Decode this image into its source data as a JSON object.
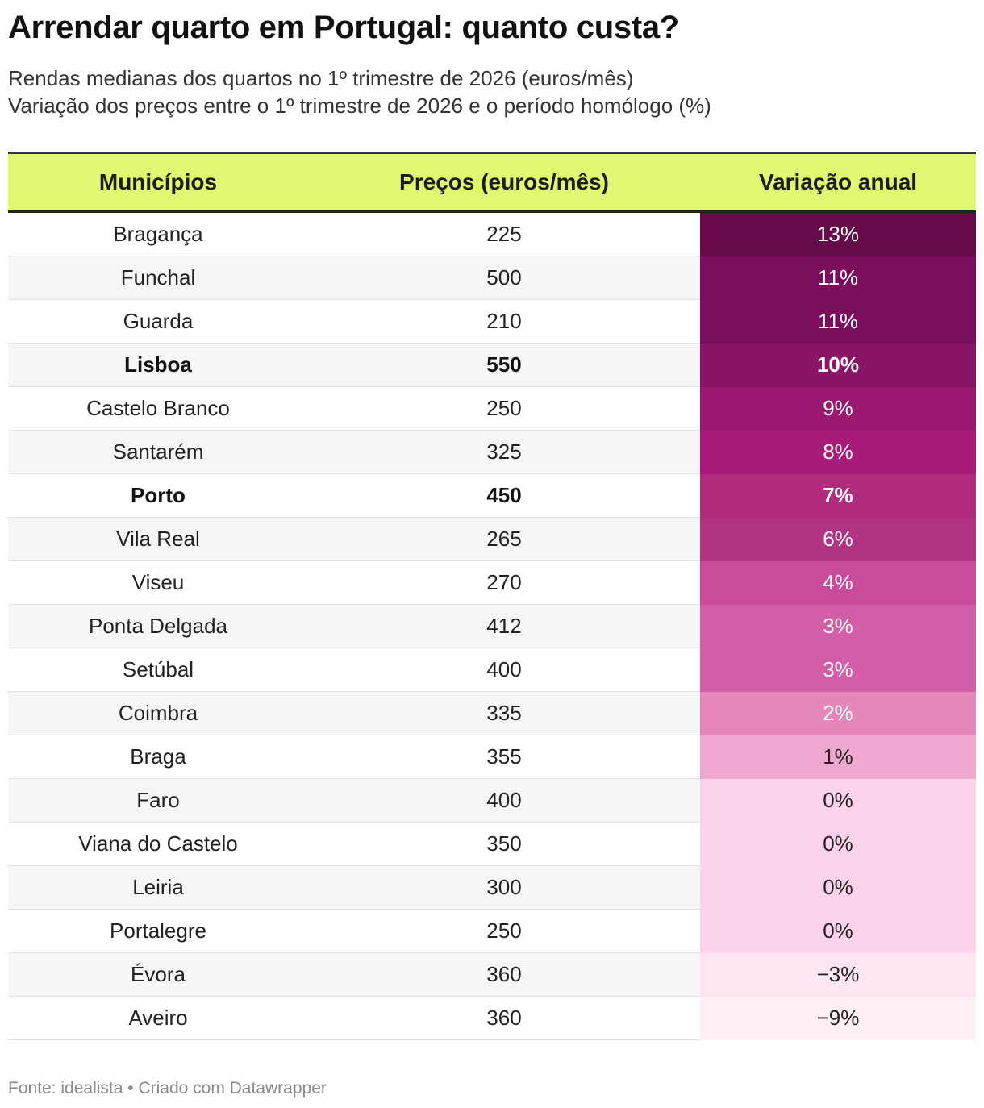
{
  "title": "Arrendar quarto em Portugal: quanto custa?",
  "subtitle_line1": "Rendas medianas dos quartos no 1º trimestre de 2026 (euros/mês)",
  "subtitle_line2": "Variação dos preços entre o 1º trimestre de 2026 e o período homólogo (%)",
  "footer": "Fonte: idealista • Criado com Datawrapper",
  "colors": {
    "header_bg": "#e1f671",
    "scale": [
      "#fff0f7",
      "#fde4f1",
      "#fdd3ec",
      "#efa6cf",
      "#e487bb",
      "#d660a5",
      "#cf519e",
      "#c64497",
      "#b02a7e",
      "#a81b78",
      "#9a1870",
      "#8a1466",
      "#7a0e5c",
      "#660a4a"
    ]
  },
  "chart_data": {
    "type": "table",
    "title": "Arrendar quarto em Portugal: quanto custa?",
    "columns": [
      "Municípios",
      "Preços (euros/mês)",
      "Variação anual"
    ],
    "rows": [
      {
        "municipio": "Bragança",
        "preco": "225",
        "variacao": "13%",
        "variacao_value": 13,
        "bold": false,
        "color": "#660a4a",
        "light_text": true
      },
      {
        "municipio": "Funchal",
        "preco": "500",
        "variacao": "11%",
        "variacao_value": 11,
        "bold": false,
        "color": "#7a0e5c",
        "light_text": true
      },
      {
        "municipio": "Guarda",
        "preco": "210",
        "variacao": "11%",
        "variacao_value": 11,
        "bold": false,
        "color": "#7a0e5c",
        "light_text": true
      },
      {
        "municipio": "Lisboa",
        "preco": "550",
        "variacao": "10%",
        "variacao_value": 10,
        "bold": true,
        "color": "#8a1466",
        "light_text": true
      },
      {
        "municipio": "Castelo Branco",
        "preco": "250",
        "variacao": "9%",
        "variacao_value": 9,
        "bold": false,
        "color": "#9a1870",
        "light_text": true
      },
      {
        "municipio": "Santarém",
        "preco": "325",
        "variacao": "8%",
        "variacao_value": 8,
        "bold": false,
        "color": "#a81b78",
        "light_text": true
      },
      {
        "municipio": "Porto",
        "preco": "450",
        "variacao": "7%",
        "variacao_value": 7,
        "bold": true,
        "color": "#b02a7e",
        "light_text": true
      },
      {
        "municipio": "Vila Real",
        "preco": "265",
        "variacao": "6%",
        "variacao_value": 6,
        "bold": false,
        "color": "#b23382",
        "light_text": true
      },
      {
        "municipio": "Viseu",
        "preco": "270",
        "variacao": "4%",
        "variacao_value": 4,
        "bold": false,
        "color": "#c9499b",
        "light_text": true
      },
      {
        "municipio": "Ponta Delgada",
        "preco": "412",
        "variacao": "3%",
        "variacao_value": 3,
        "bold": false,
        "color": "#d15ea6",
        "light_text": true
      },
      {
        "municipio": "Setúbal",
        "preco": "400",
        "variacao": "3%",
        "variacao_value": 3,
        "bold": false,
        "color": "#d15ea6",
        "light_text": true
      },
      {
        "municipio": "Coimbra",
        "preco": "335",
        "variacao": "2%",
        "variacao_value": 2,
        "bold": false,
        "color": "#e487bb",
        "light_text": true
      },
      {
        "municipio": "Braga",
        "preco": "355",
        "variacao": "1%",
        "variacao_value": 1,
        "bold": false,
        "color": "#efa8d0",
        "light_text": false
      },
      {
        "municipio": "Faro",
        "preco": "400",
        "variacao": "0%",
        "variacao_value": 0,
        "bold": false,
        "color": "#fdd3ec",
        "light_text": false
      },
      {
        "municipio": "Viana do Castelo",
        "preco": "350",
        "variacao": "0%",
        "variacao_value": 0,
        "bold": false,
        "color": "#fdd3ec",
        "light_text": false
      },
      {
        "municipio": "Leiria",
        "preco": "300",
        "variacao": "0%",
        "variacao_value": 0,
        "bold": false,
        "color": "#fdd3ec",
        "light_text": false
      },
      {
        "municipio": "Portalegre",
        "preco": "250",
        "variacao": "0%",
        "variacao_value": 0,
        "bold": false,
        "color": "#fdd3ec",
        "light_text": false
      },
      {
        "municipio": "Évora",
        "preco": "360",
        "variacao": "−3%",
        "variacao_value": -3,
        "bold": false,
        "color": "#fde6f2",
        "light_text": false
      },
      {
        "municipio": "Aveiro",
        "preco": "360",
        "variacao": "−9%",
        "variacao_value": -9,
        "bold": false,
        "color": "#fff0f7",
        "light_text": false
      }
    ]
  }
}
